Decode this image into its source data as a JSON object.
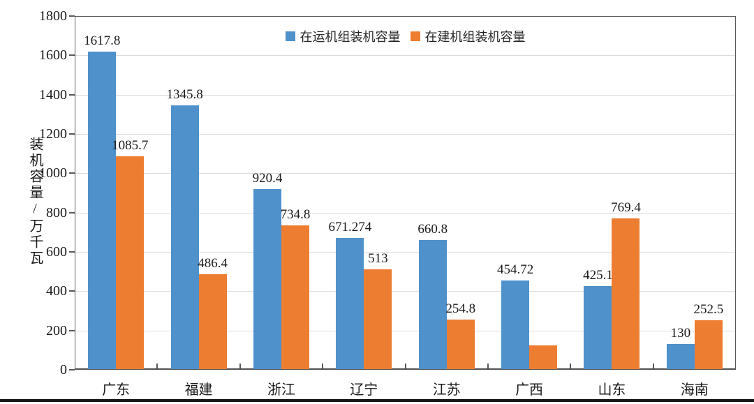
{
  "chart_data": {
    "type": "bar",
    "title": "",
    "categories": [
      "广东",
      "福建",
      "浙江",
      "辽宁",
      "江苏",
      "广西",
      "山东",
      "海南"
    ],
    "series": [
      {
        "name": "在运机组装机容量",
        "color": "#4E91CB",
        "values": [
          1617.8,
          1345.8,
          920.4,
          671.274,
          660.8,
          454.72,
          425.1,
          130
        ],
        "labels": [
          "1617.8",
          "1345.8",
          "920.4",
          "671.274",
          "660.8",
          "454.72",
          "425.1",
          "130"
        ]
      },
      {
        "name": "在建机组装机容量",
        "color": "#ED7D31",
        "values": [
          1085.7,
          486.4,
          734.8,
          513,
          254.8,
          126,
          769.4,
          252.5
        ],
        "labels": [
          "1085.7",
          "486.4",
          "734.8",
          "513",
          "254.8",
          "",
          "769.4",
          "252.5"
        ]
      }
    ],
    "xlabel": "",
    "ylabel": "装机容量/万千瓦",
    "ylim": [
      0,
      1800
    ],
    "ytick_step": 200,
    "grid": true,
    "legend_position": "top-center"
  }
}
